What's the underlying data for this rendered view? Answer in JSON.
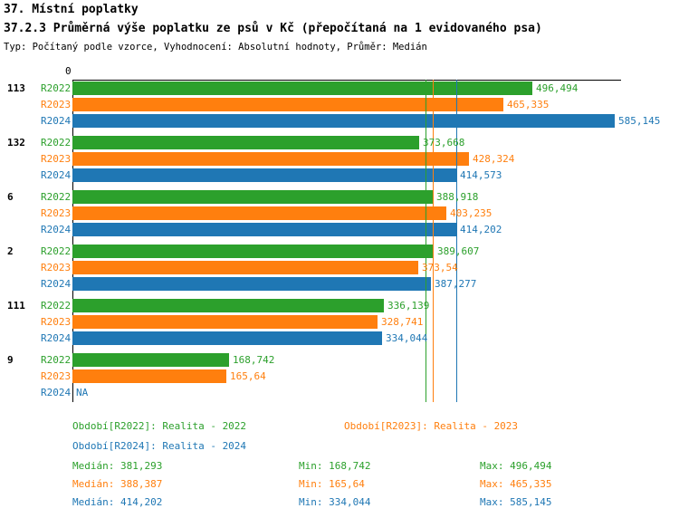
{
  "header": {
    "title1": "37. Místní poplatky",
    "title2": "37.2.3 Průměrná výše poplatku ze psů v Kč (přepočítaná na 1 evidovaného psa)",
    "subtitle": "Typ: Počítaný podle vzorce, Vyhodnocení: Absolutní hodnoty, Průměr: Medián"
  },
  "colors": {
    "r2022": "#2ca02c",
    "r2023": "#ff7f0e",
    "r2024": "#1f77b4",
    "axis": "#000000"
  },
  "chart_data": {
    "type": "bar",
    "orientation": "horizontal",
    "title": "37.2.3 Průměrná výše poplatku ze psů v Kč (přepočítaná na 1 evidovaného psa)",
    "x_origin_label": "0",
    "xlim": [
      0,
      592
    ],
    "grid": false,
    "series_names": [
      "R2022",
      "R2023",
      "R2024"
    ],
    "groups": [
      {
        "label": "113",
        "values": [
          496.494,
          465.335,
          585.145
        ],
        "value_labels": [
          "496,494",
          "465,335",
          "585,145"
        ]
      },
      {
        "label": "132",
        "values": [
          373.668,
          428.324,
          414.573
        ],
        "value_labels": [
          "373,668",
          "428,324",
          "414,573"
        ]
      },
      {
        "label": "6",
        "values": [
          388.918,
          403.235,
          414.202
        ],
        "value_labels": [
          "388,918",
          "403,235",
          "414,202"
        ]
      },
      {
        "label": "2",
        "values": [
          389.607,
          373.54,
          387.277
        ],
        "value_labels": [
          "389,607",
          "373,54",
          "387,277"
        ]
      },
      {
        "label": "111",
        "values": [
          336.139,
          328.741,
          334.044
        ],
        "value_labels": [
          "336,139",
          "328,741",
          "334,044"
        ]
      },
      {
        "label": "9",
        "values": [
          168.742,
          165.64,
          null
        ],
        "value_labels": [
          "168,742",
          "165,64",
          "NA"
        ]
      }
    ],
    "reference_lines": [
      {
        "series": "R2022",
        "value": 381.293
      },
      {
        "series": "R2023",
        "value": 388.387
      },
      {
        "series": "R2024",
        "value": 414.202
      }
    ]
  },
  "legend": {
    "items": [
      {
        "series": "r2022",
        "label": "Období[R2022]: Realita - 2022"
      },
      {
        "series": "r2023",
        "label": "Období[R2023]: Realita - 2023"
      },
      {
        "series": "r2024",
        "label": "Období[R2024]: Realita - 2024"
      }
    ],
    "stats": [
      {
        "series": "r2022",
        "median": "Medián: 381,293",
        "min": "Min: 168,742",
        "max": "Max: 496,494"
      },
      {
        "series": "r2023",
        "median": "Medián: 388,387",
        "min": "Min: 165,64",
        "max": "Max: 465,335"
      },
      {
        "series": "r2024",
        "median": "Medián: 414,202",
        "min": "Min: 334,044",
        "max": "Max: 585,145"
      }
    ]
  }
}
